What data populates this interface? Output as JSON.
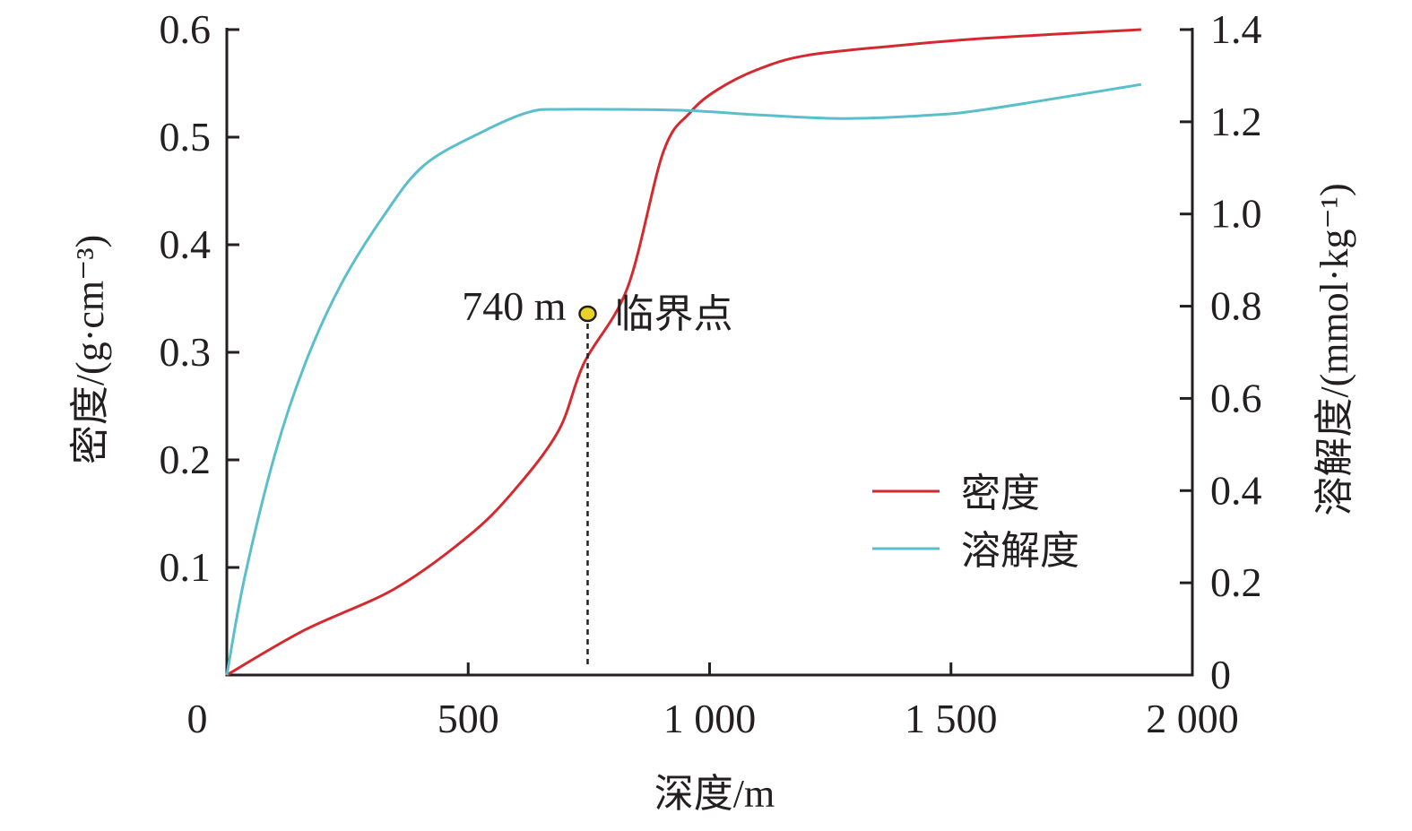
{
  "chart_data": {
    "type": "line",
    "xlabel": "深度/m",
    "ylabel_left": "密度/(g·cm⁻³)",
    "ylabel_right": "溶解度/(mmol·kg⁻¹)",
    "xlim": [
      0,
      2000
    ],
    "ylim_left": [
      0,
      0.6
    ],
    "ylim_right": [
      0,
      1.4
    ],
    "x_ticks": [
      0,
      500,
      1000,
      1500,
      2000
    ],
    "x_tick_labels": [
      "0",
      "500",
      "1 000",
      "1 500",
      "2 000"
    ],
    "y_left_ticks": [
      0.1,
      0.2,
      0.3,
      0.4,
      0.5,
      0.6
    ],
    "y_left_tick_labels": [
      "0.1",
      "0.2",
      "0.3",
      "0.4",
      "0.5",
      "0.6"
    ],
    "y_right_ticks": [
      0,
      0.2,
      0.4,
      0.6,
      0.8,
      1.0,
      1.2,
      1.4
    ],
    "y_right_tick_labels": [
      "0",
      "0.2",
      "0.4",
      "0.6",
      "0.8",
      "1.0",
      "1.2",
      "1.4"
    ],
    "grid": false,
    "legend_position": "bottom-right",
    "series": [
      {
        "name": "密度",
        "axis": "left",
        "color": "#d42a2f",
        "x": [
          0,
          162,
          347,
          500,
          594,
          687,
          740,
          830,
          904,
          960,
          1016,
          1100,
          1201,
          1387,
          1573,
          1894
        ],
        "y": [
          0,
          0.042,
          0.08,
          0.129,
          0.171,
          0.227,
          0.29,
          0.36,
          0.486,
          0.523,
          0.544,
          0.563,
          0.576,
          0.585,
          0.592,
          0.6
        ]
      },
      {
        "name": "溶解度",
        "axis": "right",
        "color": "#5bbfcb",
        "x": [
          0,
          37,
          100,
          162,
          236,
          323,
          409,
          533,
          626,
          700,
          941,
          1100,
          1276,
          1450,
          1573,
          1894
        ],
        "y": [
          0,
          0.212,
          0.48,
          0.675,
          0.846,
          0.993,
          1.106,
          1.18,
          1.221,
          1.227,
          1.225,
          1.215,
          1.207,
          1.214,
          1.227,
          1.281
        ]
      }
    ],
    "annotation": {
      "x": 740,
      "y": 0.29,
      "depth_label": "740 m",
      "label": "临界点",
      "marker_color": "#e8d22a"
    }
  }
}
